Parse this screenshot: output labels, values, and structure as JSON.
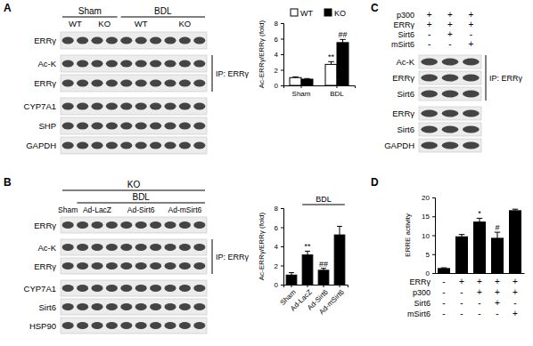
{
  "panel_labels": [
    "A",
    "B",
    "C",
    "D"
  ],
  "chart_data": [
    {
      "type": "bar",
      "ylabel": "Ac-ERRγ/ERRγ (fold)",
      "categories": [
        "Sham",
        "BDL"
      ],
      "series": [
        {
          "name": "WT",
          "color": "#ffffff",
          "values": [
            1.0,
            2.7
          ],
          "error": [
            0.1,
            0.35
          ],
          "annotations": [
            null,
            "**"
          ]
        },
        {
          "name": "KO",
          "color": "#000000",
          "values": [
            0.8,
            5.5
          ],
          "error": [
            0.08,
            0.4
          ],
          "annotations": [
            null,
            "##"
          ]
        }
      ],
      "ylim": [
        0,
        8
      ],
      "yticks": [
        0,
        2,
        4,
        6,
        8
      ],
      "legend": "top"
    },
    {
      "type": "bar",
      "ylabel": "Ac-ERRγ/ERRγ (fold)",
      "group_label": "BDL",
      "categories": [
        "Sham",
        "Ad-LacZ",
        "Ad-Sirt6",
        "Ad-mSirt6"
      ],
      "values": [
        1.0,
        3.1,
        1.5,
        5.2
      ],
      "error": [
        0.25,
        0.4,
        0.2,
        0.9
      ],
      "annotations": [
        null,
        "**",
        "##",
        null
      ],
      "color": "#000000",
      "ylim": [
        0,
        8
      ],
      "yticks": [
        0,
        2,
        4,
        6,
        8
      ]
    },
    {
      "type": "bar",
      "ylabel": "ERRE activity",
      "categories": [
        null,
        null,
        null,
        null,
        null
      ],
      "values": [
        1.2,
        9.6,
        13.5,
        9.2,
        16.5
      ],
      "error": [
        0.2,
        0.6,
        1.0,
        1.6,
        0.4
      ],
      "annotations": [
        null,
        null,
        "*",
        "#",
        null
      ],
      "color": "#000000",
      "ylim": [
        0,
        20
      ],
      "yticks": [
        0,
        5,
        10,
        15,
        20
      ],
      "conditions": [
        {
          "label": "ERRγ",
          "signs": [
            "-",
            "+",
            "+",
            "+",
            "+"
          ]
        },
        {
          "label": "p300",
          "signs": [
            "-",
            "-",
            "+",
            "+",
            "+"
          ]
        },
        {
          "label": "Sirt6",
          "signs": [
            "-",
            "-",
            "-",
            "+",
            "-"
          ]
        },
        {
          "label": "mSirt6",
          "signs": [
            "-",
            "-",
            "-",
            "-",
            "+"
          ]
        }
      ]
    }
  ],
  "blots": [
    {
      "groups": [
        {
          "label": "Sham",
          "sub": [
            "WT",
            "KO"
          ]
        },
        {
          "label": "BDL",
          "sub": [
            "WT",
            "KO"
          ]
        }
      ],
      "sections": [
        {
          "rows": [
            "ERRγ"
          ]
        },
        {
          "rows": [
            "Ac-K",
            "ERRγ"
          ],
          "bracket": "IP: ERRγ"
        },
        {
          "rows": [
            "CYP7A1",
            "SHP",
            "GAPDH"
          ]
        }
      ]
    },
    {
      "top": "KO",
      "groups": [
        {
          "label": "Sham"
        },
        {
          "label": "BDL",
          "sub": [
            "Ad-LacZ",
            "Ad-Sirt6",
            "Ad-mSirt6"
          ]
        }
      ],
      "sections": [
        {
          "rows": [
            "ERRγ"
          ]
        },
        {
          "rows": [
            "Ac-K",
            "ERRγ"
          ],
          "bracket": "IP: ERRγ"
        },
        {
          "rows": [
            "CYP7A1",
            "Sirt6",
            "HSP90"
          ]
        }
      ]
    },
    {
      "conditions": [
        {
          "label": "p300",
          "signs": [
            "+",
            "+",
            "+"
          ]
        },
        {
          "label": "ERRγ",
          "signs": [
            "+",
            "+",
            "+"
          ]
        },
        {
          "label": "Sirt6",
          "signs": [
            "-",
            "+",
            "-"
          ]
        },
        {
          "label": "mSirt6",
          "signs": [
            "-",
            "-",
            "+"
          ]
        }
      ],
      "sections": [
        {
          "rows": [
            "Ac-K",
            "ERRγ",
            "Sirt6"
          ],
          "bracket": "IP: ERRγ"
        },
        {
          "rows": [
            "ERRγ",
            "Sirt6",
            "GAPDH"
          ]
        }
      ]
    }
  ]
}
